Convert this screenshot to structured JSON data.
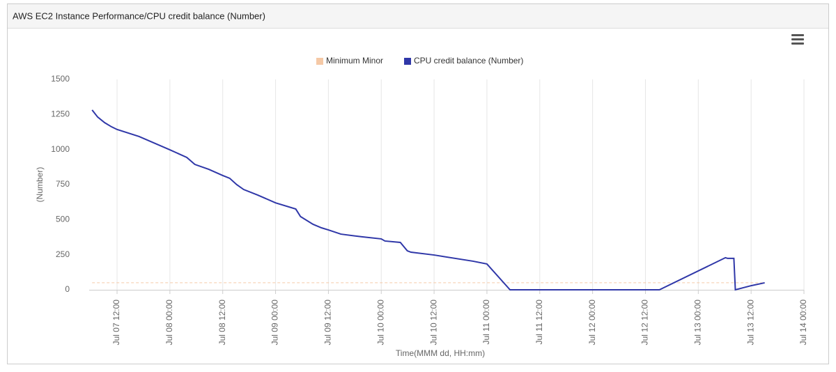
{
  "chart_data": {
    "type": "line",
    "title": "AWS EC2 Instance Performance/CPU credit balance (Number)",
    "x_label": "Time(MMM dd, HH:mm)",
    "y_label": "(Number)",
    "threshold": {
      "name": "Minimum Minor",
      "value": 50,
      "color": "#f5c9a6"
    },
    "x": [
      "Jul 07 06:20",
      "Jul 07 07:35",
      "Jul 07 09:10",
      "Jul 07 10:45",
      "Jul 07 12:00",
      "Jul 07 17:00",
      "Jul 08 00:00",
      "Jul 08 03:50",
      "Jul 08 05:40",
      "Jul 08 08:50",
      "Jul 08 12:00",
      "Jul 08 13:35",
      "Jul 08 15:10",
      "Jul 08 16:45",
      "Jul 08 19:55",
      "Jul 09 00:00",
      "Jul 09 04:35",
      "Jul 09 05:40",
      "Jul 09 08:30",
      "Jul 09 10:25",
      "Jul 09 12:00",
      "Jul 09 14:50",
      "Jul 09 19:35",
      "Jul 10 00:00",
      "Jul 10 00:50",
      "Jul 10 04:20",
      "Jul 10 05:55",
      "Jul 10 06:45",
      "Jul 10 12:00",
      "Jul 10 20:50",
      "Jul 11 00:00",
      "Jul 11 05:15",
      "Jul 11 20:35",
      "Jul 12 07:35",
      "Jul 12 15:10",
      "Jul 13 06:10",
      "Jul 13 06:40",
      "Jul 13 08:05",
      "Jul 13 08:25",
      "Jul 13 12:05",
      "Jul 13 15:05"
    ],
    "series": [
      {
        "name": "CPU credit balance (Number)",
        "color": "#2f37a8",
        "values": [
          1282,
          1232,
          1192,
          1162,
          1143,
          1093,
          998,
          944,
          894,
          859,
          815,
          795,
          750,
          715,
          676,
          620,
          576,
          522,
          467,
          442,
          427,
          397,
          378,
          363,
          348,
          338,
          278,
          268,
          248,
          204,
          184,
          0,
          0,
          0,
          0,
          229,
          224,
          224,
          0,
          30,
          50
        ]
      }
    ],
    "xlim": [
      "Jul 07 05:40",
      "Jul 14 00:00"
    ],
    "xticks": [
      "Jul 07 12:00",
      "Jul 08 00:00",
      "Jul 08 12:00",
      "Jul 09 00:00",
      "Jul 09 12:00",
      "Jul 10 00:00",
      "Jul 10 12:00",
      "Jul 11 00:00",
      "Jul 11 12:00",
      "Jul 12 00:00",
      "Jul 12 12:00",
      "Jul 13 00:00",
      "Jul 13 12:00",
      "Jul 14 00:00"
    ],
    "ylim": [
      0,
      1500
    ],
    "yticks": [
      0,
      250,
      500,
      750,
      1000,
      1250,
      1500
    ],
    "grid": true
  }
}
